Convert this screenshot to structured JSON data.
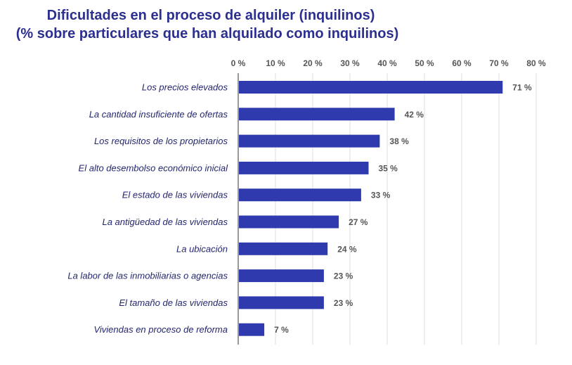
{
  "chart_data": {
    "type": "bar",
    "orientation": "horizontal",
    "title": "Dificultades en el proceso de alquiler (inquilinos)",
    "subtitle": "(% sobre particulares que han alquilado como inquilinos)",
    "categories": [
      "Los precios elevados",
      "La cantidad insuficiente de ofertas",
      "Los requisitos de los propietarios",
      "El alto desembolso económico inicial",
      "El estado de las viviendas",
      "La antigüedad de las viviendas",
      "La ubicación",
      "La labor de las inmobiliarias o agencias",
      "El tamaño de las viviendas",
      "Viviendas en proceso de reforma"
    ],
    "values": [
      71,
      42,
      38,
      35,
      33,
      27,
      24,
      23,
      23,
      7
    ],
    "value_labels": [
      "71 %",
      "42 %",
      "38 %",
      "35 %",
      "33 %",
      "27 %",
      "24 %",
      "23 %",
      "23 %",
      "7 %"
    ],
    "xlim": [
      0,
      80
    ],
    "x_ticks": [
      "0 %",
      "10 %",
      "20 %",
      "30 %",
      "40 %",
      "50 %",
      "60 %",
      "70 %",
      "80 %"
    ],
    "x_axis_position": "top",
    "grid": true,
    "colors": {
      "bar": "#2e3aad",
      "title": "#2b2f8f",
      "label": "#23266e",
      "value": "#555555",
      "grid": "#dddddd"
    }
  }
}
